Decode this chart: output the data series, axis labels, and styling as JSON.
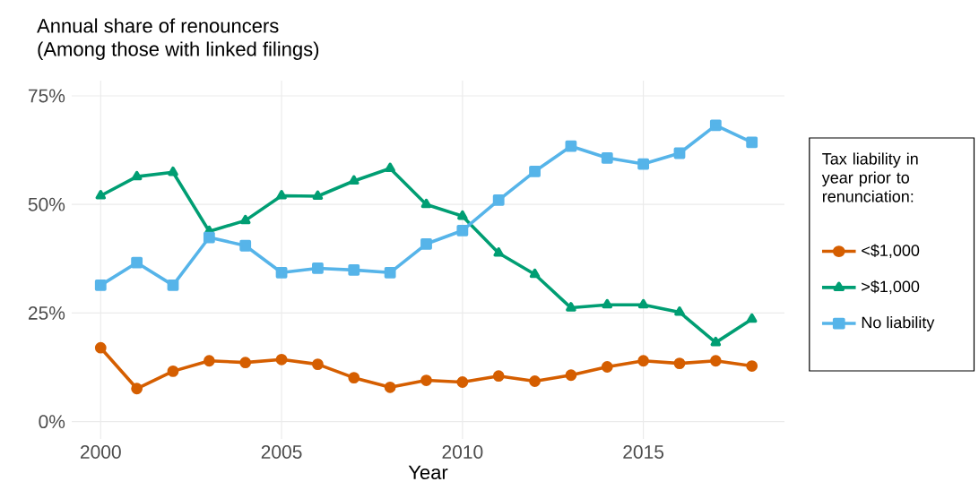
{
  "chart_data": {
    "type": "line",
    "title": "Annual share of renouncers",
    "subtitle": "(Among those with linked filings)",
    "xlabel": "Year",
    "legend_title": "Tax liability in year prior to renunciation:",
    "x": [
      2000,
      2001,
      2002,
      2003,
      2004,
      2005,
      2006,
      2007,
      2008,
      2009,
      2010,
      2011,
      2012,
      2013,
      2014,
      2015,
      2016,
      2017,
      2018
    ],
    "series": [
      {
        "name": "<$1,000",
        "color": "#d55e00",
        "marker": "circle",
        "values": [
          17,
          7.6,
          11.6,
          14,
          13.6,
          14.3,
          13.2,
          10.1,
          7.9,
          9.5,
          9.1,
          10.5,
          9.3,
          10.7,
          12.6,
          14,
          13.4,
          14,
          12.8
        ]
      },
      {
        "name": ">$1,000",
        "color": "#009e73",
        "marker": "triangle",
        "values": [
          52,
          56.4,
          57.4,
          43.8,
          46.3,
          52,
          51.9,
          55.4,
          58.3,
          50,
          47.3,
          38.8,
          33.9,
          26.2,
          26.9,
          26.9,
          25.2,
          18.2,
          23.6
        ]
      },
      {
        "name": "No liability",
        "color": "#56b4e9",
        "marker": "square",
        "values": [
          31.4,
          36.6,
          31.4,
          42.4,
          40.5,
          34.3,
          35.3,
          34.9,
          34.3,
          40.9,
          44,
          51,
          57.6,
          63.4,
          60.7,
          59.3,
          61.8,
          68.2,
          64.3
        ]
      }
    ],
    "xlim": [
      1999.2,
      2018.9
    ],
    "ylim": [
      -4,
      78.5
    ],
    "xticks": [
      2000,
      2005,
      2010,
      2015
    ],
    "yticks": [
      {
        "value": 0,
        "label": "0%"
      },
      {
        "value": 25,
        "label": "25%"
      },
      {
        "value": 50,
        "label": "50%"
      },
      {
        "value": 75,
        "label": "75%"
      }
    ],
    "grid": true,
    "legend": "right",
    "line_style": "solid"
  }
}
